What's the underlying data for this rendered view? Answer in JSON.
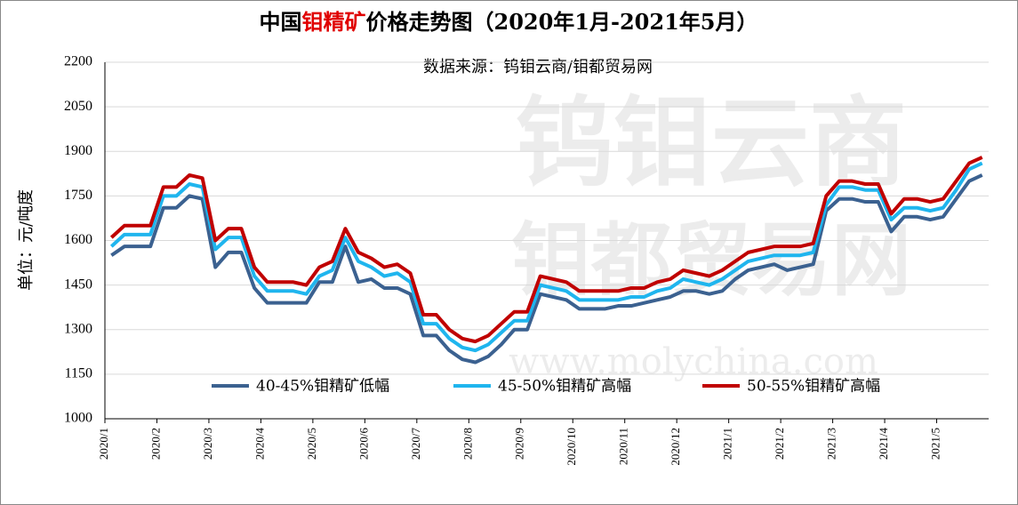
{
  "chart_data": {
    "type": "line",
    "title": [
      "中国",
      "钼精矿",
      "价格走势图（2020年1月-2021年5月）"
    ],
    "subtitle": "数据来源：钨钼云商/钼都贸易网",
    "y_label": "单位：元/吨度",
    "watermark": [
      "钨钼云商",
      "钼都贸易网",
      "www.molychina.com"
    ],
    "categories": [
      "2020/1",
      null,
      null,
      null,
      "2020/2",
      null,
      null,
      null,
      "2020/3",
      null,
      null,
      null,
      "2020/4",
      null,
      null,
      null,
      "2020/5",
      null,
      null,
      null,
      "2020/6",
      null,
      null,
      null,
      "2020/7",
      null,
      null,
      null,
      "2020/8",
      null,
      null,
      null,
      "2020/9",
      null,
      null,
      null,
      "2020/10",
      null,
      null,
      null,
      "2020/11",
      null,
      null,
      null,
      "2020/12",
      null,
      null,
      null,
      "2021/1",
      null,
      null,
      null,
      "2021/2",
      null,
      null,
      null,
      "2021/3",
      null,
      null,
      null,
      "2021/4",
      null,
      null,
      null,
      "2021/5",
      null,
      null,
      null
    ],
    "series": [
      {
        "name": "40-45%钼精矿低幅",
        "color": "#3b6190",
        "values": [
          1550,
          1580,
          1580,
          1580,
          1710,
          1710,
          1750,
          1740,
          1510,
          1560,
          1560,
          1440,
          1390,
          1390,
          1390,
          1390,
          1460,
          1460,
          1580,
          1460,
          1470,
          1440,
          1440,
          1420,
          1280,
          1280,
          1230,
          1200,
          1190,
          1210,
          1250,
          1300,
          1300,
          1420,
          1410,
          1400,
          1370,
          1370,
          1370,
          1380,
          1380,
          1390,
          1400,
          1410,
          1430,
          1430,
          1420,
          1430,
          1470,
          1500,
          1510,
          1520,
          1500,
          1510,
          1520,
          1700,
          1740,
          1740,
          1730,
          1730,
          1630,
          1680,
          1680,
          1670,
          1680,
          1740,
          1800,
          1820
        ]
      },
      {
        "name": "45-50%钼精矿高幅",
        "color": "#1fb5ee",
        "values": [
          1580,
          1620,
          1620,
          1620,
          1750,
          1750,
          1790,
          1780,
          1570,
          1610,
          1610,
          1480,
          1430,
          1430,
          1430,
          1420,
          1480,
          1500,
          1610,
          1530,
          1510,
          1480,
          1490,
          1460,
          1320,
          1320,
          1270,
          1240,
          1230,
          1250,
          1290,
          1330,
          1330,
          1450,
          1440,
          1430,
          1400,
          1400,
          1400,
          1400,
          1410,
          1410,
          1430,
          1440,
          1470,
          1460,
          1450,
          1470,
          1500,
          1530,
          1540,
          1550,
          1550,
          1550,
          1560,
          1720,
          1780,
          1780,
          1770,
          1770,
          1670,
          1710,
          1710,
          1700,
          1710,
          1770,
          1840,
          1860
        ]
      },
      {
        "name": "50-55%钼精矿高幅",
        "color": "#c00000",
        "values": [
          1610,
          1650,
          1650,
          1650,
          1780,
          1780,
          1820,
          1810,
          1600,
          1640,
          1640,
          1510,
          1460,
          1460,
          1460,
          1450,
          1510,
          1530,
          1640,
          1560,
          1540,
          1510,
          1520,
          1490,
          1350,
          1350,
          1300,
          1270,
          1260,
          1280,
          1320,
          1360,
          1360,
          1480,
          1470,
          1460,
          1430,
          1430,
          1430,
          1430,
          1440,
          1440,
          1460,
          1470,
          1500,
          1490,
          1480,
          1500,
          1530,
          1560,
          1570,
          1580,
          1580,
          1580,
          1590,
          1750,
          1800,
          1800,
          1790,
          1790,
          1690,
          1740,
          1740,
          1730,
          1740,
          1800,
          1860,
          1880
        ]
      }
    ],
    "ylim": [
      1000,
      2200
    ],
    "yticks": [
      1000,
      1150,
      1300,
      1450,
      1600,
      1750,
      1900,
      2050,
      2200
    ],
    "grid": true
  }
}
